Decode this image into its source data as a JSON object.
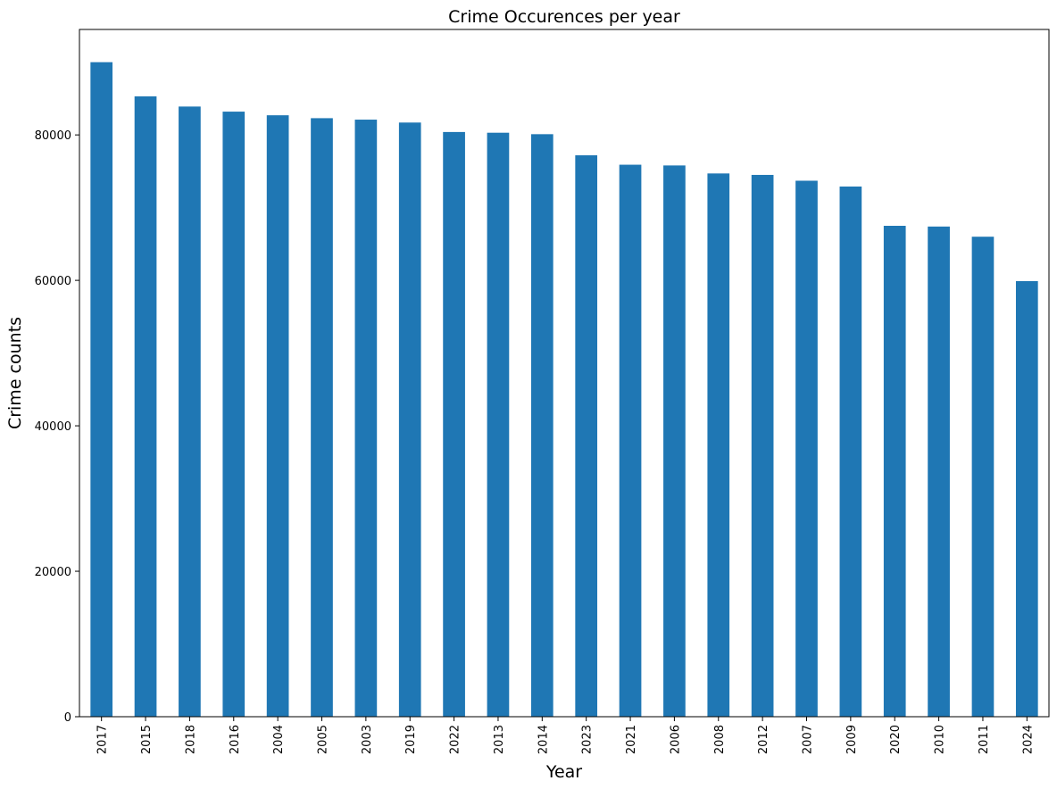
{
  "chart_data": {
    "type": "bar",
    "title": "Crime Occurences per year",
    "xlabel": "Year",
    "ylabel": "Crime counts",
    "categories": [
      "2017",
      "2015",
      "2018",
      "2016",
      "2004",
      "2005",
      "2003",
      "2019",
      "2022",
      "2013",
      "2014",
      "2023",
      "2021",
      "2006",
      "2008",
      "2012",
      "2007",
      "2009",
      "2020",
      "2010",
      "2011",
      "2024"
    ],
    "values": [
      90000,
      85300,
      83900,
      83200,
      82700,
      82300,
      82100,
      81700,
      80400,
      80300,
      80100,
      77200,
      75900,
      75800,
      74700,
      74500,
      73700,
      72900,
      67500,
      67400,
      66000,
      59900
    ],
    "ylim": [
      0,
      94500
    ],
    "yticks": [
      0,
      20000,
      40000,
      60000,
      80000
    ],
    "grid": false,
    "bar_color": "#1f77b4"
  }
}
